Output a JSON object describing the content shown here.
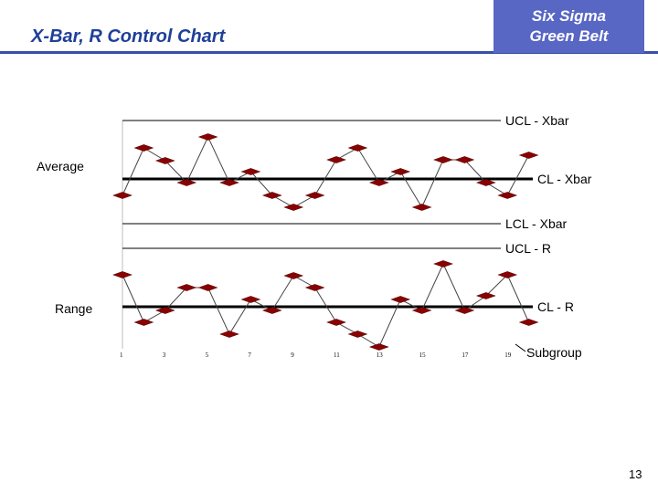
{
  "header": {
    "title": "X-Bar, R Control Chart",
    "badge_line1": "Six Sigma",
    "badge_line2": "Green Belt"
  },
  "page_number": "13",
  "colors": {
    "title": "#1f3f99",
    "badge_bg": "#5866c4",
    "marker": "#8b0000",
    "line": "#000000"
  },
  "chart_data": [
    {
      "type": "line",
      "panel": "xbar",
      "ylabel": "Average",
      "x": [
        1,
        2,
        3,
        4,
        5,
        6,
        7,
        8,
        9,
        10,
        11,
        12,
        13,
        14,
        15,
        16,
        17,
        18,
        19,
        20
      ],
      "y": [
        214,
        162,
        176,
        200,
        150,
        200,
        188,
        214,
        227,
        214,
        175,
        162,
        200,
        188,
        227,
        175,
        175,
        200,
        214,
        170
      ],
      "limits": [
        {
          "name": "UCL - Xbar",
          "value": 132,
          "style": "thin"
        },
        {
          "name": "CL - Xbar",
          "value": 196,
          "style": "thick"
        },
        {
          "name": "LCL - Xbar",
          "value": 245,
          "style": "thin"
        }
      ],
      "y_reversed_scale": true
    },
    {
      "type": "line",
      "panel": "range",
      "ylabel": "Range",
      "xlabel": "Subgroup",
      "x": [
        1,
        2,
        3,
        4,
        5,
        6,
        7,
        8,
        9,
        10,
        11,
        12,
        13,
        14,
        15,
        16,
        17,
        18,
        19,
        20
      ],
      "y": [
        301,
        353,
        340,
        315,
        315,
        366,
        328,
        340,
        302,
        315,
        353,
        366,
        380,
        328,
        340,
        289,
        340,
        324,
        301,
        353
      ],
      "limits": [
        {
          "name": "UCL - R",
          "value": 272,
          "style": "thin"
        },
        {
          "name": "CL - R",
          "value": 336,
          "style": "thick"
        }
      ],
      "x_tick_labels": [
        "1",
        "3",
        "5",
        "7",
        "9",
        "11",
        "13",
        "15",
        "17",
        "19"
      ],
      "y_reversed_scale": true
    }
  ]
}
